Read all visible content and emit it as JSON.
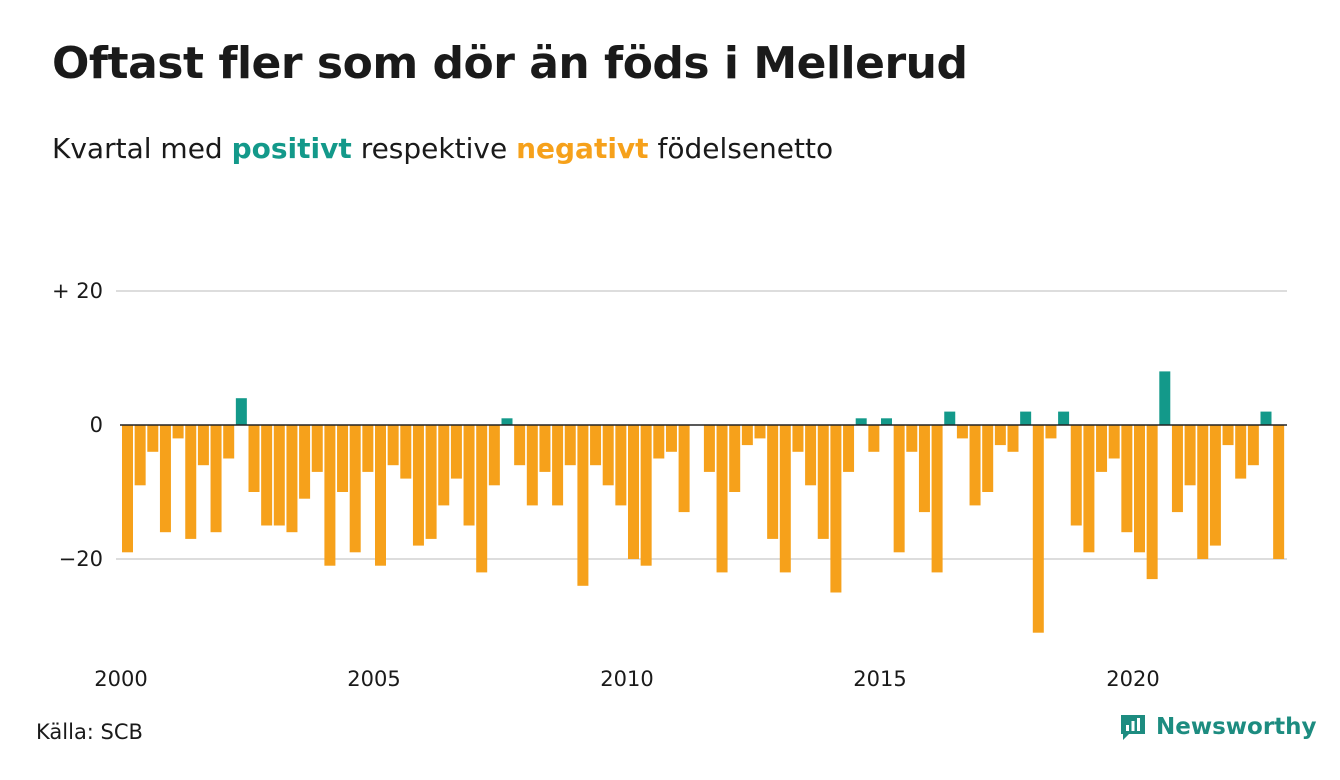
{
  "title": "Oftast fler som dör än föds i Mellerud",
  "subtitle": {
    "prefix": "Kvartal med",
    "positive_word": "positivt",
    "middle": "respektive",
    "negative_word": "negativt",
    "suffix": "födelsenetto"
  },
  "source": "Källa: SCB",
  "brand": {
    "name": "Newsworthy",
    "icon": "bar-chart-speech-icon"
  },
  "colors": {
    "positive": "#13998a",
    "negative": "#f6a11b",
    "grid": "#dddddd",
    "zero_line": "#222222",
    "brand": "#1d8c80"
  },
  "chart_data": {
    "type": "bar",
    "x_unit": "quarter",
    "start": "2000 Q1",
    "values": [
      -19,
      -9,
      -4,
      -16,
      -2,
      -17,
      -6,
      -16,
      -5,
      4,
      -10,
      -15,
      -15,
      -16,
      -11,
      -7,
      -21,
      -10,
      -19,
      -7,
      -21,
      -6,
      -8,
      -18,
      -17,
      -12,
      -8,
      -15,
      -22,
      -9,
      1,
      -6,
      -12,
      -7,
      -12,
      -6,
      -24,
      -6,
      -9,
      -12,
      -20,
      -21,
      -5,
      -4,
      -13,
      0,
      -7,
      -22,
      -10,
      -3,
      -2,
      -17,
      -22,
      -4,
      -9,
      -17,
      -25,
      -7,
      1,
      -4,
      1,
      -19,
      -4,
      -13,
      -22,
      2,
      -2,
      -12,
      -10,
      -3,
      -4,
      2,
      -31,
      -2,
      2,
      -15,
      -19,
      -7,
      -5,
      -16,
      -19,
      -23,
      8,
      -13,
      -9,
      -20,
      -18,
      -3,
      -8,
      -6,
      2,
      -20
    ],
    "x_ticks": [
      "2000",
      "2005",
      "2010",
      "2015",
      "2020"
    ],
    "y_ticks": [
      {
        "value": 20,
        "label": "+ 20"
      },
      {
        "value": 0,
        "label": "0"
      },
      {
        "value": -20,
        "label": "−20"
      }
    ],
    "ylim": [
      -32,
      20
    ],
    "grid": true,
    "legend": "none (colours explained in subtitle)"
  }
}
